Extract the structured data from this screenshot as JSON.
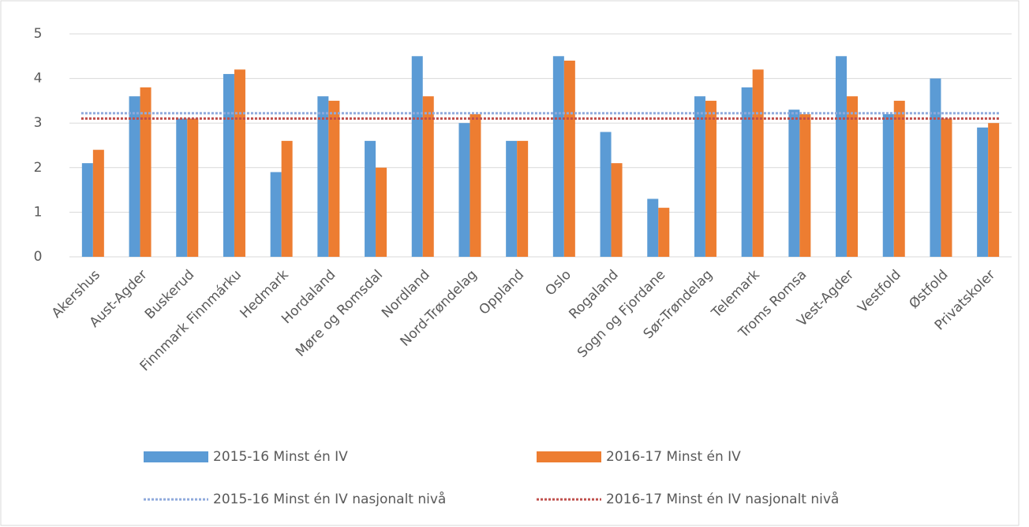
{
  "chart_data": {
    "type": "bar",
    "categories": [
      "Akershus",
      "Aust-Agder",
      "Buskerud",
      "Finnmark Finnmárku",
      "Hedmark",
      "Hordaland",
      "Møre og Romsdal",
      "Nordland",
      "Nord-Trøndelag",
      "Oppland",
      "Oslo",
      "Rogaland",
      "Sogn og Fjordane",
      "Sør-Trøndelag",
      "Telemark",
      "Troms Romsa",
      "Vest-Agder",
      "Vestfold",
      "Østfold",
      "Privatskoler"
    ],
    "series": [
      {
        "name": "2015-16 Minst én IV",
        "color": "#5b9bd5",
        "values": [
          2.1,
          3.6,
          3.1,
          4.1,
          1.9,
          3.6,
          2.6,
          4.5,
          3.0,
          2.6,
          4.5,
          2.8,
          1.3,
          3.6,
          3.8,
          3.3,
          4.5,
          3.2,
          4.0,
          2.9
        ]
      },
      {
        "name": "2016-17 Minst én IV",
        "color": "#ed7d31",
        "values": [
          2.4,
          3.8,
          3.1,
          4.2,
          2.6,
          3.5,
          2.0,
          3.6,
          3.2,
          2.6,
          4.4,
          2.1,
          1.1,
          3.5,
          4.2,
          3.2,
          3.6,
          3.5,
          3.1,
          3.0
        ]
      }
    ],
    "reference_lines": [
      {
        "name": "2015-16 Minst én IV nasjonalt nivå",
        "color": "#8faadc",
        "value": 3.22
      },
      {
        "name": "2016-17 Minst én IV nasjonalt nivå",
        "color": "#c0504d",
        "value": 3.1
      }
    ],
    "ylim": [
      0,
      5
    ],
    "yticks": [
      0,
      1,
      2,
      3,
      4,
      5
    ],
    "grid": true
  }
}
